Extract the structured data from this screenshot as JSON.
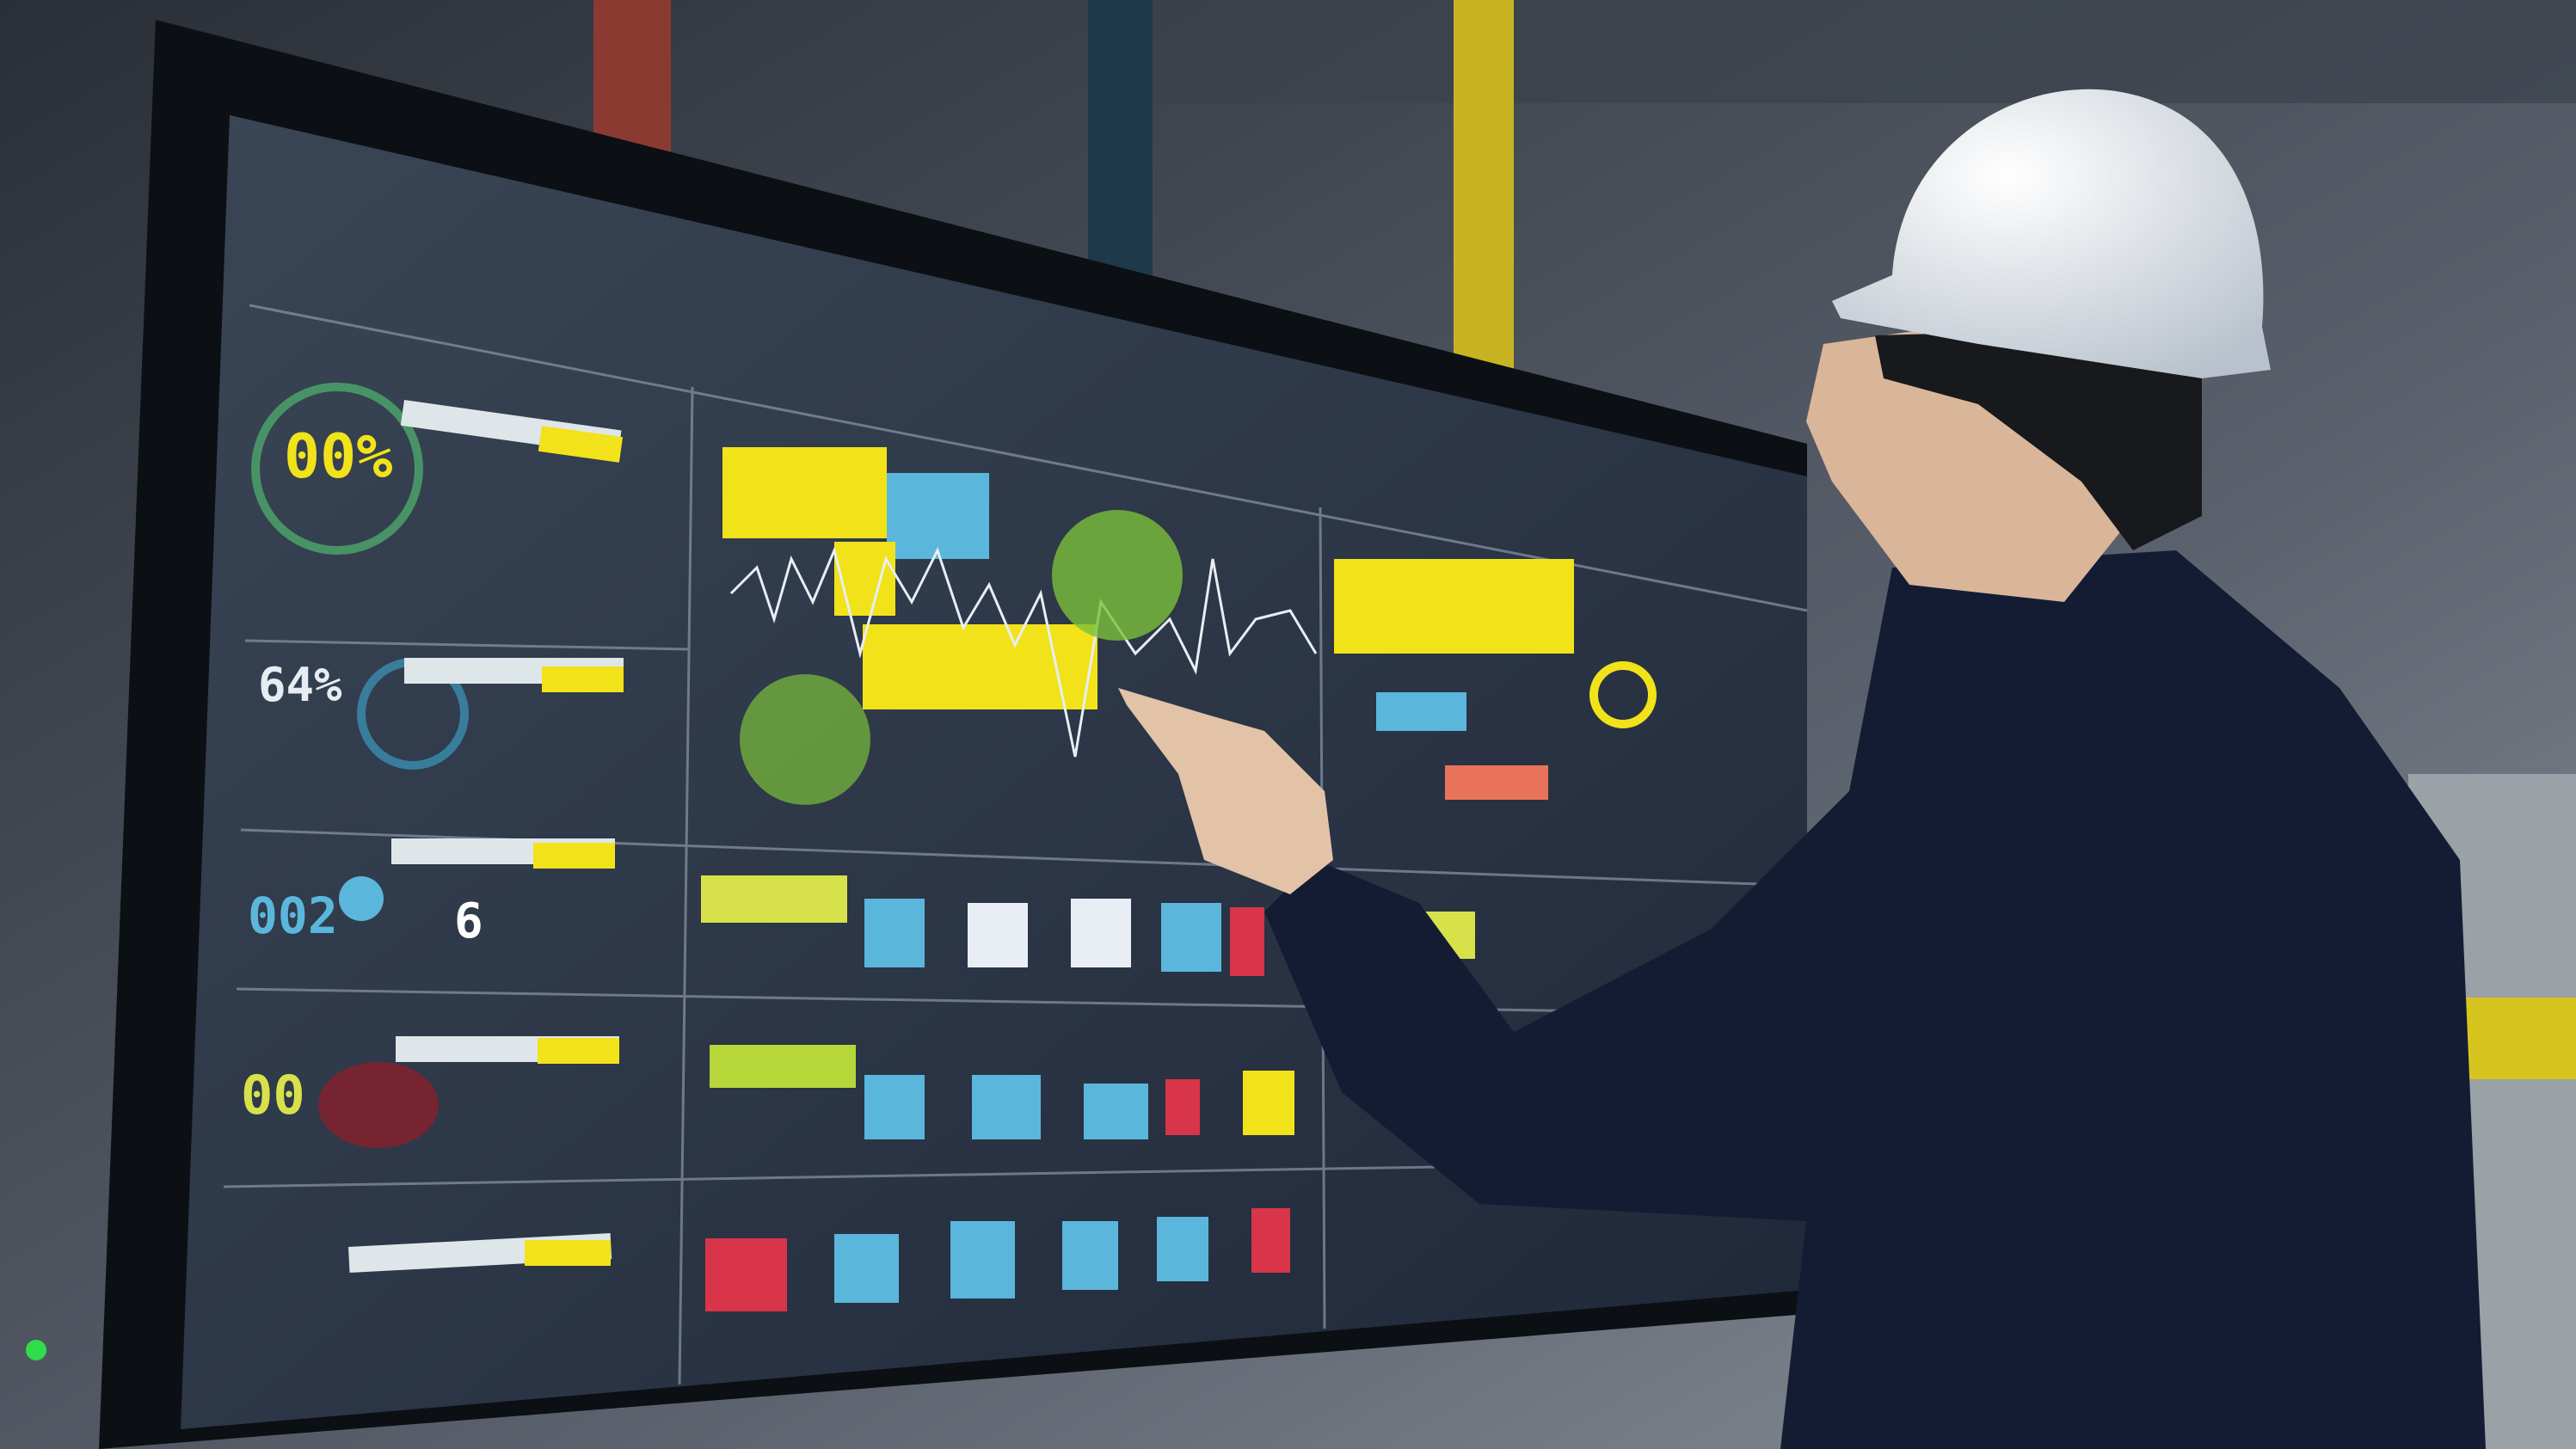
{
  "scene": {
    "description_colors": {
      "screen_bg": "#2b3646",
      "accent_yellow": "#f2e21a",
      "accent_cyan": "#5bb6dc",
      "accent_green": "#8fd14f",
      "accent_red": "#d8344a",
      "shirt": "#141c33",
      "helmet": "#eef1f4"
    }
  },
  "dashboard": {
    "gauges": [
      {
        "value": "00%"
      },
      {
        "value": "64%"
      },
      {
        "value": "002"
      },
      {
        "value": "6"
      },
      {
        "value": "00"
      }
    ]
  }
}
